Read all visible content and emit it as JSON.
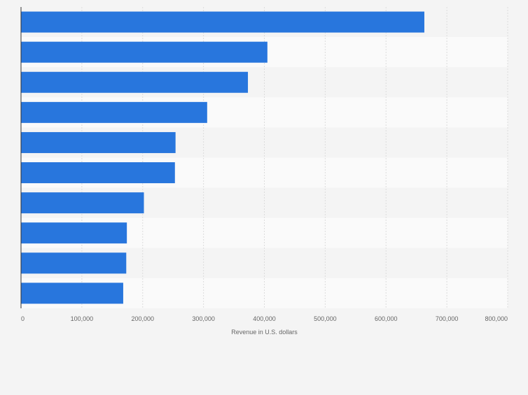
{
  "chart_data": {
    "type": "bar",
    "orientation": "horizontal",
    "categories": [
      "",
      "",
      "",
      "",
      "",
      "",
      "",
      "",
      "",
      ""
    ],
    "values": [
      663000,
      405000,
      373000,
      306000,
      254000,
      253000,
      202000,
      174000,
      173000,
      168000
    ],
    "xlabel": "Revenue in U.S. dollars",
    "ylabel": "",
    "xlim": [
      0,
      800000
    ],
    "x_ticks": [
      0,
      100000,
      200000,
      300000,
      400000,
      500000,
      600000,
      700000,
      800000
    ],
    "x_tick_labels": [
      "0",
      "100,000",
      "200,000",
      "300,000",
      "400,000",
      "500,000",
      "600,000",
      "700,000",
      "800,000"
    ],
    "grid": true,
    "legend": "none",
    "colors": {
      "bar": "#2876dd",
      "band_dark": "#f4f4f4",
      "band_light": "#fafafa",
      "grid": "#dcdcdc",
      "axis": "#333333",
      "text": "#666666"
    }
  }
}
